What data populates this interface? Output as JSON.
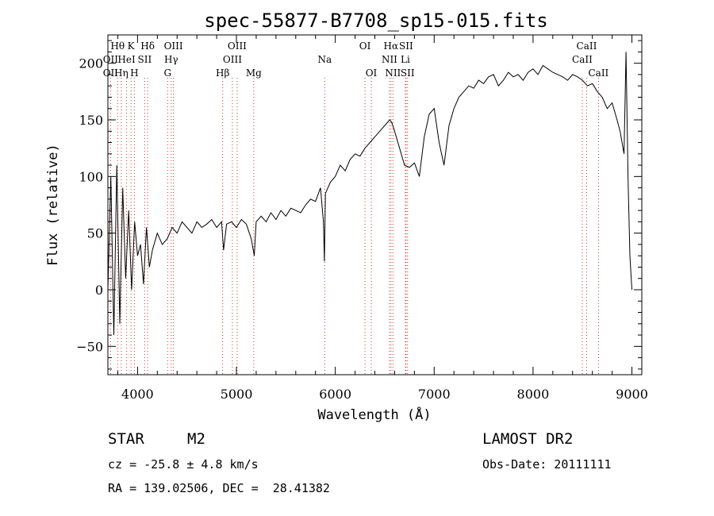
{
  "chart_data": {
    "type": "line",
    "title": "spec-55877-B7708_sp15-015.fits",
    "xlabel": "Wavelength (Å)",
    "ylabel": "Flux (relative)",
    "xlim": [
      3700,
      9100
    ],
    "ylim": [
      -75,
      225
    ],
    "x_ticks": [
      4000,
      5000,
      6000,
      7000,
      8000,
      9000
    ],
    "y_ticks": [
      -50,
      0,
      50,
      100,
      150,
      200
    ],
    "grid": false,
    "color": "#000000",
    "line_marker_color": "#cc3333",
    "spectrum": {
      "x": [
        3700,
        3730,
        3760,
        3790,
        3820,
        3850,
        3880,
        3910,
        3940,
        3970,
        4000,
        4030,
        4060,
        4090,
        4120,
        4150,
        4200,
        4250,
        4300,
        4350,
        4400,
        4450,
        4500,
        4550,
        4600,
        4650,
        4700,
        4750,
        4800,
        4850,
        4870,
        4900,
        4950,
        5000,
        5050,
        5100,
        5150,
        5180,
        5200,
        5250,
        5300,
        5350,
        5400,
        5450,
        5500,
        5550,
        5600,
        5650,
        5700,
        5750,
        5800,
        5850,
        5880,
        5890,
        5900,
        5950,
        6000,
        6050,
        6100,
        6150,
        6200,
        6250,
        6300,
        6350,
        6400,
        6450,
        6500,
        6550,
        6570,
        6600,
        6650,
        6700,
        6750,
        6800,
        6850,
        6900,
        6950,
        7000,
        7050,
        7100,
        7150,
        7200,
        7250,
        7300,
        7350,
        7400,
        7450,
        7500,
        7550,
        7600,
        7650,
        7700,
        7750,
        7800,
        7850,
        7900,
        7950,
        8000,
        8050,
        8100,
        8150,
        8200,
        8250,
        8300,
        8350,
        8400,
        8450,
        8500,
        8550,
        8600,
        8650,
        8700,
        8750,
        8800,
        8850,
        8880,
        8900,
        8920,
        8940,
        8960,
        8980,
        9000
      ],
      "y": [
        0,
        100,
        -40,
        110,
        -30,
        90,
        10,
        70,
        0,
        60,
        30,
        40,
        5,
        55,
        20,
        35,
        50,
        40,
        45,
        55,
        50,
        60,
        55,
        50,
        60,
        55,
        58,
        62,
        55,
        60,
        35,
        58,
        60,
        55,
        62,
        58,
        45,
        30,
        60,
        65,
        60,
        68,
        62,
        70,
        65,
        72,
        70,
        68,
        75,
        80,
        78,
        90,
        60,
        25,
        85,
        95,
        100,
        110,
        105,
        115,
        120,
        118,
        125,
        130,
        135,
        140,
        145,
        150,
        148,
        140,
        125,
        110,
        108,
        112,
        100,
        135,
        155,
        160,
        130,
        110,
        145,
        160,
        170,
        175,
        180,
        178,
        185,
        182,
        188,
        190,
        180,
        185,
        192,
        188,
        190,
        185,
        192,
        195,
        190,
        198,
        195,
        192,
        190,
        188,
        185,
        190,
        188,
        185,
        180,
        182,
        175,
        170,
        160,
        165,
        150,
        140,
        130,
        120,
        210,
        100,
        30,
        0
      ]
    },
    "spectral_lines": [
      {
        "label": "Hθ",
        "x": 3798,
        "row": 1
      },
      {
        "label": "OII",
        "x": 3727,
        "row": 2
      },
      {
        "label": "OII",
        "x": 3727,
        "row": 3
      },
      {
        "label": "Hη",
        "x": 3835,
        "row": 3
      },
      {
        "label": "HeI",
        "x": 3889,
        "row": 2
      },
      {
        "label": "K",
        "x": 3934,
        "row": 1
      },
      {
        "label": "H",
        "x": 3968,
        "row": 3
      },
      {
        "label": "SII",
        "x": 4072,
        "row": 2
      },
      {
        "label": "Hδ",
        "x": 4102,
        "row": 1
      },
      {
        "label": "OIII",
        "x": 4363,
        "row": 1
      },
      {
        "label": "Hγ",
        "x": 4340,
        "row": 2
      },
      {
        "label": "G",
        "x": 4304,
        "row": 3
      },
      {
        "label": "Hβ",
        "x": 4861,
        "row": 3
      },
      {
        "label": "OIII",
        "x": 5007,
        "row": 1
      },
      {
        "label": "OIII",
        "x": 4959,
        "row": 2
      },
      {
        "label": "Mg",
        "x": 5175,
        "row": 3
      },
      {
        "label": "Na",
        "x": 5893,
        "row": 2
      },
      {
        "label": "OI",
        "x": 6300,
        "row": 1
      },
      {
        "label": "OI",
        "x": 6364,
        "row": 3
      },
      {
        "label": "Hα",
        "x": 6563,
        "row": 1
      },
      {
        "label": "NII",
        "x": 6548,
        "row": 2
      },
      {
        "label": "NII",
        "x": 6583,
        "row": 3
      },
      {
        "label": "SII",
        "x": 6716,
        "row": 1
      },
      {
        "label": "Li",
        "x": 6708,
        "row": 2
      },
      {
        "label": "SII",
        "x": 6731,
        "row": 3
      },
      {
        "label": "CaII",
        "x": 8542,
        "row": 1
      },
      {
        "label": "CaII",
        "x": 8498,
        "row": 2
      },
      {
        "label": "CaII",
        "x": 8662,
        "row": 3
      }
    ]
  },
  "info": {
    "object_class": "STAR",
    "subclass": "M2",
    "survey": "LAMOST DR2",
    "redshift_line": "cz = -25.8 ± 4.8 km/s",
    "obs_date": "Obs-Date: 20111111",
    "coords": "RA = 139.02506, DEC =  28.41382"
  }
}
